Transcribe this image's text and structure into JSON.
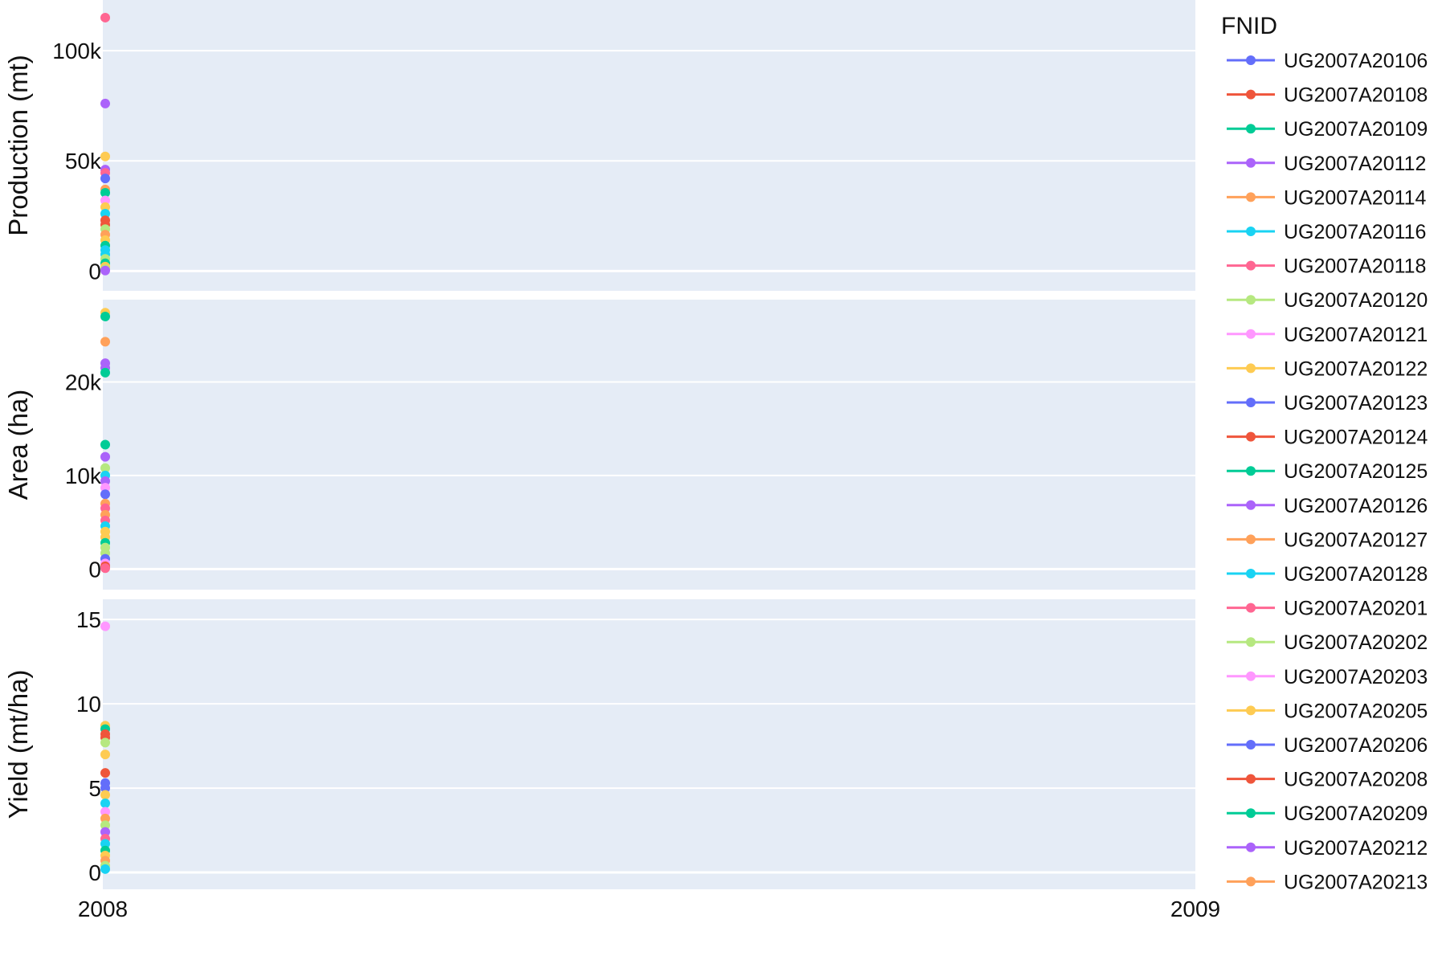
{
  "chart_data": {
    "type": "scatter",
    "x_ticks": [
      "2008",
      "2009"
    ],
    "xlim": [
      2008,
      2009
    ],
    "legend": {
      "title": "FNID",
      "entries": [
        {
          "name": "UG2007A20106",
          "color": "#636efa"
        },
        {
          "name": "UG2007A20108",
          "color": "#EF553B"
        },
        {
          "name": "UG2007A20109",
          "color": "#00cc96"
        },
        {
          "name": "UG2007A20112",
          "color": "#ab63fa"
        },
        {
          "name": "UG2007A20114",
          "color": "#FFA15A"
        },
        {
          "name": "UG2007A20116",
          "color": "#19d3f3"
        },
        {
          "name": "UG2007A20118",
          "color": "#FF6692"
        },
        {
          "name": "UG2007A20120",
          "color": "#B6E880"
        },
        {
          "name": "UG2007A20121",
          "color": "#FF97FF"
        },
        {
          "name": "UG2007A20122",
          "color": "#FECB52"
        },
        {
          "name": "UG2007A20123",
          "color": "#636efa"
        },
        {
          "name": "UG2007A20124",
          "color": "#EF553B"
        },
        {
          "name": "UG2007A20125",
          "color": "#00cc96"
        },
        {
          "name": "UG2007A20126",
          "color": "#ab63fa"
        },
        {
          "name": "UG2007A20127",
          "color": "#FFA15A"
        },
        {
          "name": "UG2007A20128",
          "color": "#19d3f3"
        },
        {
          "name": "UG2007A20201",
          "color": "#FF6692"
        },
        {
          "name": "UG2007A20202",
          "color": "#B6E880"
        },
        {
          "name": "UG2007A20203",
          "color": "#FF97FF"
        },
        {
          "name": "UG2007A20205",
          "color": "#FECB52"
        },
        {
          "name": "UG2007A20206",
          "color": "#636efa"
        },
        {
          "name": "UG2007A20208",
          "color": "#EF553B"
        },
        {
          "name": "UG2007A20209",
          "color": "#00cc96"
        },
        {
          "name": "UG2007A20212",
          "color": "#ab63fa"
        },
        {
          "name": "UG2007A20213",
          "color": "#FFA15A"
        }
      ]
    },
    "panels": [
      {
        "ylabel": "Production (mt)",
        "ylim": [
          -9000,
          123000
        ],
        "y_ticks": [
          {
            "value": 0,
            "label": "0"
          },
          {
            "value": 50000,
            "label": "50k"
          },
          {
            "value": 100000,
            "label": "100k"
          }
        ],
        "points": [
          {
            "x": 2008,
            "y": 115000,
            "series": 6
          },
          {
            "x": 2008,
            "y": 76000,
            "series": 3
          },
          {
            "x": 2008,
            "y": 52000,
            "series": 9
          },
          {
            "x": 2008,
            "y": 46000,
            "series": 3
          },
          {
            "x": 2008,
            "y": 44500,
            "series": 6
          },
          {
            "x": 2008,
            "y": 42000,
            "series": 0
          },
          {
            "x": 2008,
            "y": 37000,
            "series": 4
          },
          {
            "x": 2008,
            "y": 35500,
            "series": 2
          },
          {
            "x": 2008,
            "y": 32000,
            "series": 8
          },
          {
            "x": 2008,
            "y": 29000,
            "series": 9
          },
          {
            "x": 2008,
            "y": 26000,
            "series": 5
          },
          {
            "x": 2008,
            "y": 23000,
            "series": 1
          },
          {
            "x": 2008,
            "y": 21000,
            "series": 11
          },
          {
            "x": 2008,
            "y": 19000,
            "series": 7
          },
          {
            "x": 2008,
            "y": 16500,
            "series": 4
          },
          {
            "x": 2008,
            "y": 14000,
            "series": 19
          },
          {
            "x": 2008,
            "y": 11500,
            "series": 12
          },
          {
            "x": 2008,
            "y": 9500,
            "series": 15
          },
          {
            "x": 2008,
            "y": 7500,
            "series": 5
          },
          {
            "x": 2008,
            "y": 5500,
            "series": 17
          },
          {
            "x": 2008,
            "y": 3500,
            "series": 2
          },
          {
            "x": 2008,
            "y": 2000,
            "series": 9
          },
          {
            "x": 2008,
            "y": 800,
            "series": 7
          },
          {
            "x": 2008,
            "y": 200,
            "series": 13
          }
        ]
      },
      {
        "ylabel": "Area (ha)",
        "ylim": [
          -2200,
          28800
        ],
        "y_ticks": [
          {
            "value": 0,
            "label": "0"
          },
          {
            "value": 10000,
            "label": "10k"
          },
          {
            "value": 20000,
            "label": "20k"
          }
        ],
        "points": [
          {
            "x": 2008,
            "y": 27400,
            "series": 9
          },
          {
            "x": 2008,
            "y": 27000,
            "series": 2
          },
          {
            "x": 2008,
            "y": 24300,
            "series": 4
          },
          {
            "x": 2008,
            "y": 22000,
            "series": 3
          },
          {
            "x": 2008,
            "y": 21500,
            "series": 13
          },
          {
            "x": 2008,
            "y": 21000,
            "series": 2
          },
          {
            "x": 2008,
            "y": 13300,
            "series": 12
          },
          {
            "x": 2008,
            "y": 12000,
            "series": 3
          },
          {
            "x": 2008,
            "y": 10800,
            "series": 7
          },
          {
            "x": 2008,
            "y": 10000,
            "series": 5
          },
          {
            "x": 2008,
            "y": 9400,
            "series": 13
          },
          {
            "x": 2008,
            "y": 8700,
            "series": 8
          },
          {
            "x": 2008,
            "y": 8000,
            "series": 0
          },
          {
            "x": 2008,
            "y": 7000,
            "series": 4
          },
          {
            "x": 2008,
            "y": 6500,
            "series": 16
          },
          {
            "x": 2008,
            "y": 5800,
            "series": 14
          },
          {
            "x": 2008,
            "y": 5200,
            "series": 6
          },
          {
            "x": 2008,
            "y": 4600,
            "series": 5
          },
          {
            "x": 2008,
            "y": 4000,
            "series": 19
          },
          {
            "x": 2008,
            "y": 3400,
            "series": 9
          },
          {
            "x": 2008,
            "y": 2800,
            "series": 2
          },
          {
            "x": 2008,
            "y": 2300,
            "series": 17
          },
          {
            "x": 2008,
            "y": 1700,
            "series": 7
          },
          {
            "x": 2008,
            "y": 1100,
            "series": 10
          },
          {
            "x": 2008,
            "y": 600,
            "series": 8
          },
          {
            "x": 2008,
            "y": 300,
            "series": 1
          },
          {
            "x": 2008,
            "y": 100,
            "series": 6
          }
        ]
      },
      {
        "ylabel": "Yield (mt/ha)",
        "ylim": [
          -1,
          16.2
        ],
        "y_ticks": [
          {
            "value": 0,
            "label": "0"
          },
          {
            "value": 5,
            "label": "5"
          },
          {
            "value": 10,
            "label": "10"
          },
          {
            "value": 15,
            "label": "15"
          }
        ],
        "points": [
          {
            "x": 2008,
            "y": 14.6,
            "series": 8
          },
          {
            "x": 2008,
            "y": 8.7,
            "series": 9
          },
          {
            "x": 2008,
            "y": 8.5,
            "series": 2
          },
          {
            "x": 2008,
            "y": 8.2,
            "series": 1
          },
          {
            "x": 2008,
            "y": 8.0,
            "series": 11
          },
          {
            "x": 2008,
            "y": 7.7,
            "series": 7
          },
          {
            "x": 2008,
            "y": 7.0,
            "series": 9
          },
          {
            "x": 2008,
            "y": 5.9,
            "series": 1
          },
          {
            "x": 2008,
            "y": 5.3,
            "series": 0
          },
          {
            "x": 2008,
            "y": 5.0,
            "series": 20
          },
          {
            "x": 2008,
            "y": 4.6,
            "series": 19
          },
          {
            "x": 2008,
            "y": 4.1,
            "series": 15
          },
          {
            "x": 2008,
            "y": 3.6,
            "series": 8
          },
          {
            "x": 2008,
            "y": 3.2,
            "series": 4
          },
          {
            "x": 2008,
            "y": 2.8,
            "series": 17
          },
          {
            "x": 2008,
            "y": 2.4,
            "series": 3
          },
          {
            "x": 2008,
            "y": 2.0,
            "series": 6
          },
          {
            "x": 2008,
            "y": 1.7,
            "series": 5
          },
          {
            "x": 2008,
            "y": 1.3,
            "series": 12
          },
          {
            "x": 2008,
            "y": 1.0,
            "series": 9
          },
          {
            "x": 2008,
            "y": 0.7,
            "series": 14
          },
          {
            "x": 2008,
            "y": 0.4,
            "series": 7
          },
          {
            "x": 2008,
            "y": 0.2,
            "series": 5
          }
        ]
      }
    ]
  }
}
